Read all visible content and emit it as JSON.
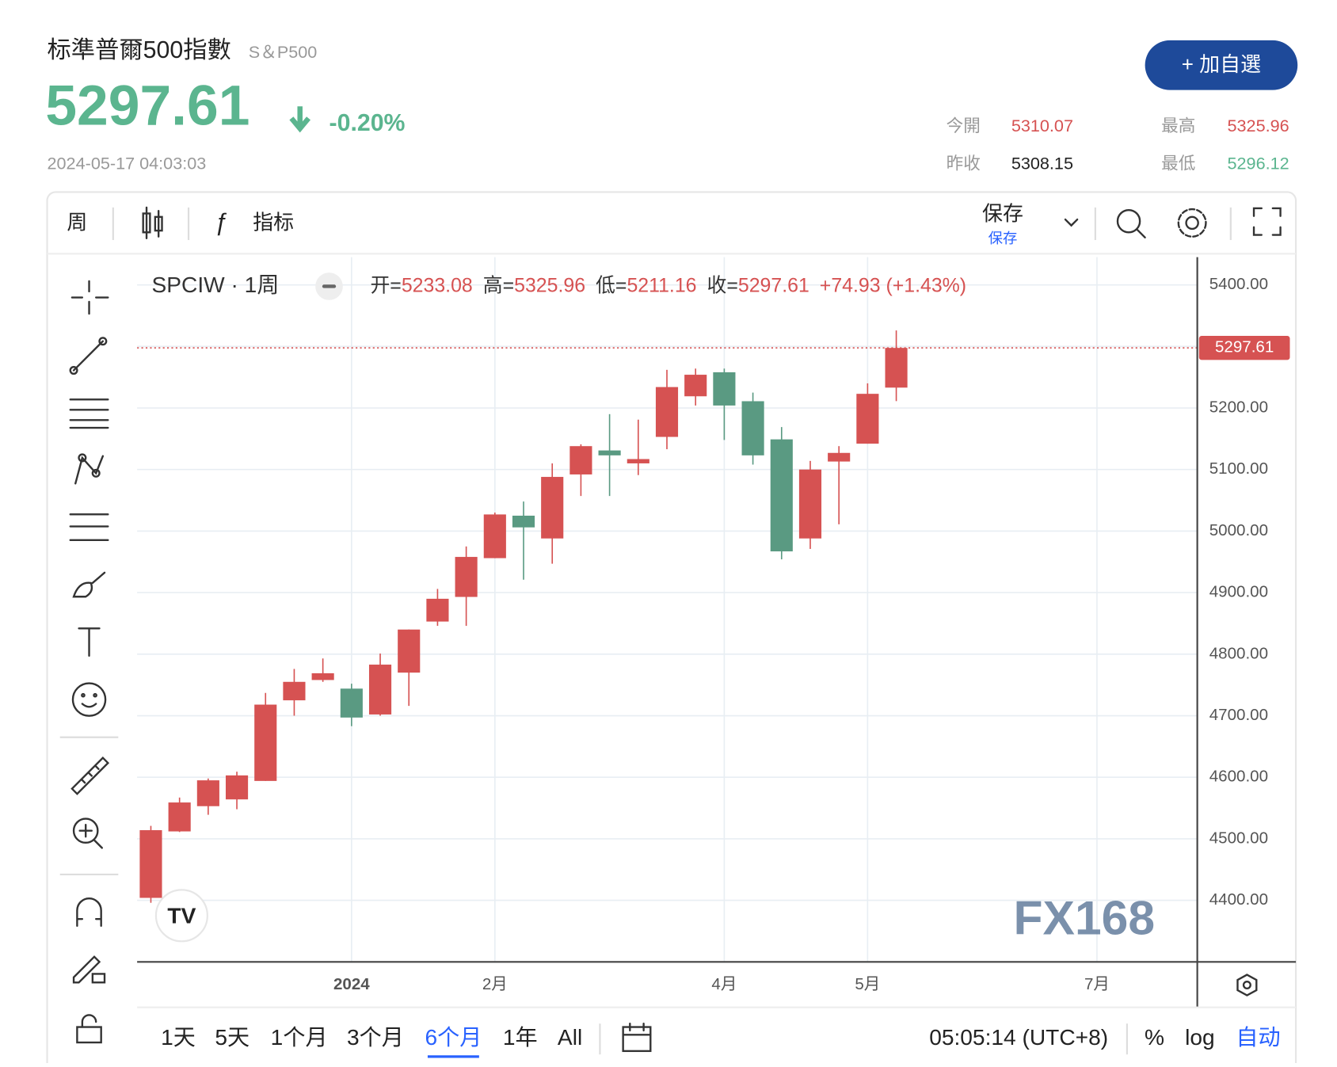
{
  "header": {
    "title": "标準普爾500指數",
    "symbol": "S＆P500",
    "price": "5297.61",
    "change": "-0.20%",
    "datetime": "2024-05-17 04:03:03",
    "button": "+ 加自選",
    "stats": [
      {
        "label": "今開",
        "value": "5310.07"
      },
      {
        "label": "最高",
        "value": "5325.96"
      },
      {
        "label": "昨收",
        "value": "5308.15"
      },
      {
        "label": "最低",
        "value": "5296.12"
      }
    ]
  },
  "toolbar": {
    "interval": "周",
    "indicators": "指标",
    "save": "保存",
    "save_sub": "保存"
  },
  "range_bar": {
    "ranges": [
      "1天",
      "5天",
      "1个月",
      "3个月",
      "6个月",
      "1年",
      "All"
    ],
    "time": "05:05:14 (UTC+8)",
    "percent": "%",
    "log": "log",
    "auto": "自动"
  },
  "chart_data": {
    "type": "candlestick",
    "symbol_label": "SPCIW · 1周",
    "ohlc_labels": [
      "开=",
      "高=",
      "低=",
      "收="
    ],
    "change_label": "+74.93 (+1.43%)",
    "watermark": "FX168",
    "categories": [
      null,
      null,
      null,
      null,
      null,
      null,
      null,
      "2024",
      null,
      null,
      null,
      null,
      "2月",
      null,
      null,
      null,
      null,
      null,
      null,
      null,
      "4月",
      null,
      null,
      null,
      null,
      "5月",
      null,
      null,
      null,
      null,
      null,
      null,
      null,
      "7月",
      null,
      null,
      null
    ],
    "open": [
      4404,
      4512,
      4553,
      4564,
      4594,
      4725,
      4758,
      4744,
      4702,
      4770,
      4853,
      4893,
      4956,
      5025,
      4988,
      5092,
      5131,
      5110,
      5153,
      5219,
      5258,
      5211,
      5149,
      4988,
      5113,
      5142,
      5233.08,
      null,
      null,
      null,
      null,
      null,
      null,
      null,
      null,
      null,
      null
    ],
    "high": [
      4521,
      4567,
      4598,
      4609,
      4737,
      4776,
      4793,
      4752,
      4801,
      4840,
      4906,
      4975,
      5030,
      5048,
      5110,
      5141,
      5190,
      5181,
      5262,
      5264,
      5264,
      5225,
      5169,
      5114,
      5138,
      5240,
      5325.96,
      null,
      null,
      null,
      null,
      null,
      null,
      null,
      null,
      null,
      null
    ],
    "low": [
      4396,
      4511,
      4539,
      4548,
      4594,
      4700,
      4755,
      4683,
      4700,
      4716,
      4846,
      4846,
      4956,
      4921,
      4947,
      5057,
      5057,
      5091,
      5133,
      5204,
      5148,
      5108,
      4954,
      4971,
      5011,
      5142,
      5211.16,
      null,
      null,
      null,
      null,
      null,
      null,
      null,
      null,
      null,
      null
    ],
    "close": [
      4514,
      4559,
      4595,
      4603,
      4718,
      4755,
      4769,
      4697,
      4783,
      4840,
      4890,
      4958,
      5027,
      5006,
      5088,
      5138,
      5123,
      5117,
      5234,
      5254,
      5204,
      5123,
      4967,
      5100,
      5127,
      5223,
      5297.61,
      null,
      null,
      null,
      null,
      null,
      null,
      null,
      null,
      null,
      null
    ],
    "up_color": "#d65252",
    "down_color": "#5a9a82",
    "ylim": [
      4300,
      5445
    ],
    "yticks": [
      {
        "value": 4400,
        "label": "4400.00"
      },
      {
        "value": 4500,
        "label": "4500.00"
      },
      {
        "value": 4600,
        "label": "4600.00"
      },
      {
        "value": 4700,
        "label": "4700.00"
      },
      {
        "value": 4800,
        "label": "4800.00"
      },
      {
        "value": 4900,
        "label": "4900.00"
      },
      {
        "value": 5000,
        "label": "5000.00"
      },
      {
        "value": 5100,
        "label": "5100.00"
      },
      {
        "value": 5200,
        "label": "5200.00"
      },
      {
        "value": 5300,
        "label": "5300.00"
      },
      {
        "value": 5400,
        "label": "5400.00"
      }
    ],
    "grid": true,
    "last_price_line": true
  }
}
